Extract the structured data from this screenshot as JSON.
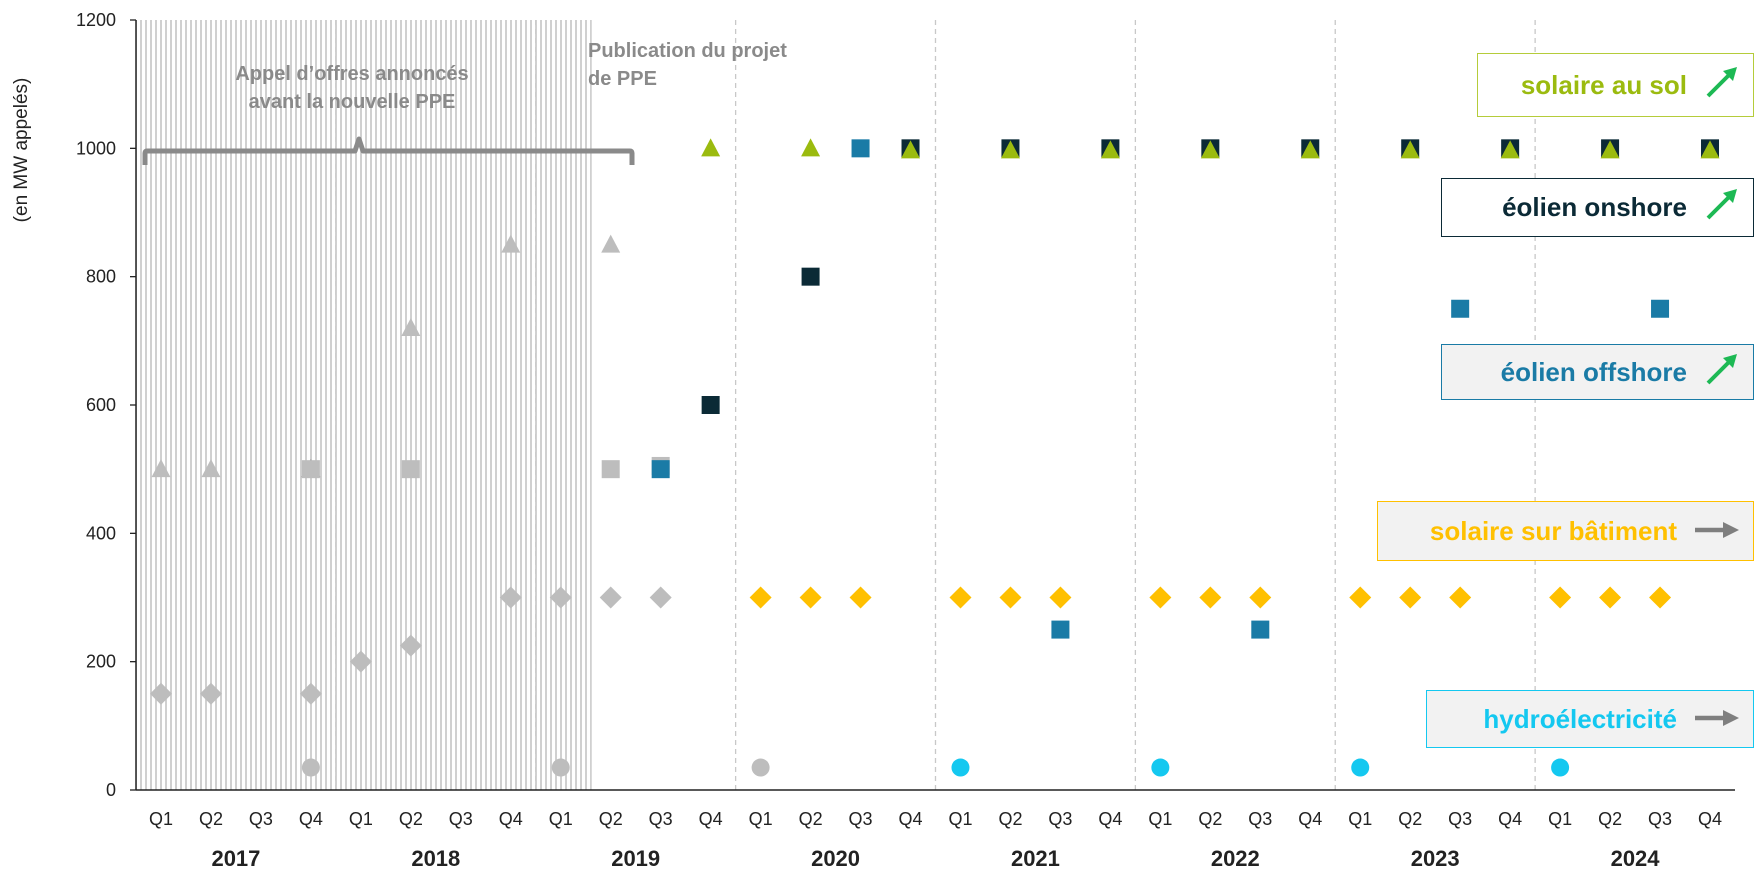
{
  "chart_data": {
    "type": "scatter",
    "ylabel": "(en MW appelés)",
    "ylim": [
      0,
      1200
    ],
    "yticks": [
      0,
      200,
      400,
      600,
      800,
      1000,
      1200
    ],
    "quarter_labels": [
      "Q1",
      "Q2",
      "Q3",
      "Q4"
    ],
    "years": [
      "2017",
      "2018",
      "2019",
      "2020",
      "2021",
      "2022",
      "2023",
      "2024"
    ],
    "annotations": {
      "pre_ppe": [
        "Appel d’offres annoncés",
        "avant la nouvelle PPE"
      ],
      "publication": [
        "Publication du projet",
        "de PPE"
      ]
    },
    "series": [
      {
        "name": "solaire au sol",
        "marker": "triangle",
        "color": "#9bbb0f",
        "trend": "up",
        "points": [
          [
            "2019 Q4",
            1000
          ],
          [
            "2020 Q2",
            1000
          ],
          [
            "2020 Q4",
            1000
          ],
          [
            "2021 Q2",
            1000
          ],
          [
            "2021 Q4",
            1000
          ],
          [
            "2022 Q2",
            1000
          ],
          [
            "2022 Q4",
            1000
          ],
          [
            "2023 Q2",
            1000
          ],
          [
            "2023 Q4",
            1000
          ],
          [
            "2024 Q2",
            1000
          ],
          [
            "2024 Q4",
            1000
          ]
        ]
      },
      {
        "name": "éolien onshore",
        "marker": "square",
        "color": "#0b2a36",
        "trend": "up",
        "points": [
          [
            "2019 Q4",
            600
          ],
          [
            "2020 Q2",
            800
          ],
          [
            "2020 Q4",
            1000
          ],
          [
            "2021 Q2",
            1000
          ],
          [
            "2021 Q4",
            1000
          ],
          [
            "2022 Q2",
            1000
          ],
          [
            "2022 Q4",
            1000
          ],
          [
            "2023 Q2",
            1000
          ],
          [
            "2023 Q4",
            1000
          ],
          [
            "2024 Q2",
            1000
          ],
          [
            "2024 Q4",
            1000
          ]
        ]
      },
      {
        "name": "éolien offshore",
        "marker": "square",
        "color": "#1a7ba6",
        "trend": "up",
        "points": [
          [
            "2019 Q3",
            500
          ],
          [
            "2020 Q3",
            1000
          ],
          [
            "2021 Q3",
            250
          ],
          [
            "2022 Q3",
            250
          ],
          [
            "2023 Q3",
            750
          ],
          [
            "2024 Q3",
            750
          ]
        ]
      },
      {
        "name": "solaire sur bâtiment",
        "marker": "diamond",
        "color": "#ffc000",
        "trend": "flat",
        "points": [
          [
            "2020 Q1",
            300
          ],
          [
            "2020 Q2",
            300
          ],
          [
            "2020 Q3",
            300
          ],
          [
            "2021 Q1",
            300
          ],
          [
            "2021 Q2",
            300
          ],
          [
            "2021 Q3",
            300
          ],
          [
            "2022 Q1",
            300
          ],
          [
            "2022 Q2",
            300
          ],
          [
            "2022 Q3",
            300
          ],
          [
            "2023 Q1",
            300
          ],
          [
            "2023 Q2",
            300
          ],
          [
            "2023 Q3",
            300
          ],
          [
            "2024 Q1",
            300
          ],
          [
            "2024 Q2",
            300
          ],
          [
            "2024 Q3",
            300
          ]
        ]
      },
      {
        "name": "hydroélectricité",
        "marker": "circle",
        "color": "#14c8f0",
        "trend": "flat",
        "points": [
          [
            "2021 Q1",
            35
          ],
          [
            "2022 Q1",
            35
          ],
          [
            "2023 Q1",
            35
          ],
          [
            "2024 Q1",
            35
          ]
        ]
      }
    ],
    "previous_calls": {
      "color": "#bdbdbd",
      "points": [
        {
          "marker": "triangle",
          "q": "2017 Q1",
          "y": 500
        },
        {
          "marker": "triangle",
          "q": "2017 Q2",
          "y": 500
        },
        {
          "marker": "triangle",
          "q": "2017 Q4",
          "y": 500,
          "color": "#7a7a7a"
        },
        {
          "marker": "triangle",
          "q": "2018 Q2",
          "y": 720
        },
        {
          "marker": "triangle",
          "q": "2018 Q4",
          "y": 850
        },
        {
          "marker": "triangle",
          "q": "2019 Q2",
          "y": 850
        },
        {
          "marker": "square",
          "q": "2017 Q4",
          "y": 500
        },
        {
          "marker": "square",
          "q": "2018 Q2",
          "y": 500
        },
        {
          "marker": "square",
          "q": "2019 Q2",
          "y": 500
        },
        {
          "marker": "square",
          "q": "2019 Q3",
          "y": 505
        },
        {
          "marker": "diamond",
          "q": "2017 Q1",
          "y": 150
        },
        {
          "marker": "diamond",
          "q": "2017 Q2",
          "y": 150
        },
        {
          "marker": "diamond",
          "q": "2017 Q4",
          "y": 150
        },
        {
          "marker": "diamond",
          "q": "2018 Q1",
          "y": 200
        },
        {
          "marker": "diamond",
          "q": "2018 Q2",
          "y": 225
        },
        {
          "marker": "diamond",
          "q": "2018 Q4",
          "y": 300
        },
        {
          "marker": "diamond",
          "q": "2019 Q1",
          "y": 300
        },
        {
          "marker": "diamond",
          "q": "2019 Q2",
          "y": 300
        },
        {
          "marker": "diamond",
          "q": "2019 Q3",
          "y": 300
        },
        {
          "marker": "circle",
          "q": "2017 Q4",
          "y": 35
        },
        {
          "marker": "circle",
          "q": "2019 Q1",
          "y": 35
        },
        {
          "marker": "circle",
          "q": "2020 Q1",
          "y": 35
        }
      ]
    }
  },
  "legend": [
    {
      "key": "solaire_sol",
      "label": "solaire au sol",
      "text_color": "#9bbb0f",
      "border": "#b5cc3a",
      "bg": "#ffffff",
      "arrow": "up"
    },
    {
      "key": "eolien_on",
      "label": "éolien onshore",
      "text_color": "#0b2a36",
      "border": "#0b2a36",
      "bg": "#ffffff",
      "arrow": "up"
    },
    {
      "key": "eolien_off",
      "label": "éolien offshore",
      "text_color": "#1a7ba6",
      "border": "#1a7ba6",
      "bg": "#f2f2f2",
      "arrow": "up"
    },
    {
      "key": "solaire_bat",
      "label": "solaire sur bâtiment",
      "text_color": "#ffc000",
      "border": "#ffc000",
      "bg": "#f2f2f2",
      "arrow": "right"
    },
    {
      "key": "hydro",
      "label": "hydroélectricité",
      "text_color": "#14c8f0",
      "border": "#14c8f0",
      "bg": "#f2f2f2",
      "arrow": "right"
    }
  ],
  "colors": {
    "arrow_up": "#1db954",
    "arrow_right": "#7f7f7f",
    "hatch": "#c8c8c8",
    "grid": "#c8c8c8"
  }
}
